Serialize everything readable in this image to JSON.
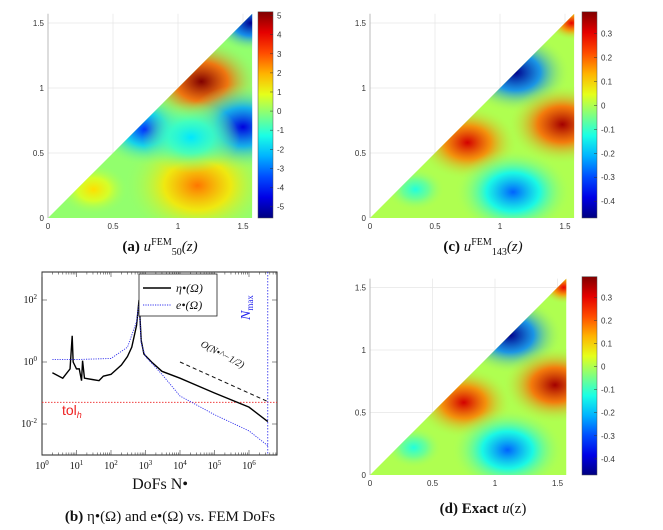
{
  "chart_data": [
    {
      "id": "a",
      "type": "heatmap",
      "caption": {
        "label": "(a)",
        "base": "u",
        "sub": "50",
        "sup": "FEM",
        "arg": "(z)"
      },
      "xlim": [
        0,
        1.5708
      ],
      "ylim": [
        0,
        1.5708
      ],
      "xticks": [
        "0",
        "0.5",
        "1",
        "1.5"
      ],
      "yticks": [
        "0",
        "0.5",
        "1",
        "1.5"
      ],
      "colorbar": {
        "range": [
          -5.6,
          5.2
        ],
        "ticks": [
          "5",
          "4",
          "3",
          "2",
          "1",
          "0",
          "-1",
          "-2",
          "-3",
          "-4",
          "-5"
        ]
      },
      "background_value": 0,
      "extrema": [
        {
          "x": 1.18,
          "y": 1.05,
          "v": 5.2,
          "r": 0.3
        },
        {
          "x": 1.15,
          "y": 0.25,
          "v": 2.6,
          "r": 0.38
        },
        {
          "x": 0.75,
          "y": 0.68,
          "v": -3.8,
          "r": 0.25
        },
        {
          "x": 1.5,
          "y": 0.7,
          "v": -4.6,
          "r": 0.3
        },
        {
          "x": 1.56,
          "y": 1.5,
          "v": -5.4,
          "r": 0.2
        },
        {
          "x": 0.35,
          "y": 0.22,
          "v": 1.5,
          "r": 0.18
        },
        {
          "x": 1.1,
          "y": 0.62,
          "v": -1.8,
          "r": 0.25
        }
      ]
    },
    {
      "id": "c",
      "type": "heatmap",
      "caption": {
        "label": "(c)",
        "base": "u",
        "sub": "143",
        "sup": "FEM",
        "arg": "(z)"
      },
      "xlim": [
        0,
        1.5708
      ],
      "ylim": [
        0,
        1.5708
      ],
      "xticks": [
        "0",
        "0.5",
        "1",
        "1.5"
      ],
      "yticks": [
        "0",
        "0.5",
        "1",
        "1.5"
      ],
      "colorbar": {
        "range": [
          -0.47,
          0.39
        ],
        "ticks": [
          "0.3",
          "0.2",
          "0.1",
          "0",
          "-0.1",
          "-0.2",
          "-0.3",
          "-0.4"
        ]
      },
      "background_value": 0,
      "extrema": [
        {
          "x": 1.12,
          "y": 1.12,
          "v": -0.46,
          "r": 0.28
        },
        {
          "x": 0.75,
          "y": 0.58,
          "v": 0.32,
          "r": 0.26
        },
        {
          "x": 1.48,
          "y": 0.72,
          "v": 0.36,
          "r": 0.28
        },
        {
          "x": 1.1,
          "y": 0.2,
          "v": -0.28,
          "r": 0.3
        },
        {
          "x": 1.55,
          "y": 1.5,
          "v": 0.3,
          "r": 0.12
        },
        {
          "x": 0.35,
          "y": 0.22,
          "v": -0.12,
          "r": 0.15
        }
      ]
    },
    {
      "id": "d",
      "type": "heatmap",
      "caption": {
        "label": "(d)",
        "text": "Exact",
        "base": "u",
        "arg": "(z)"
      },
      "xlim": [
        0,
        1.5708
      ],
      "ylim": [
        0,
        1.5708
      ],
      "xticks": [
        "0",
        "0.5",
        "1",
        "1.5"
      ],
      "yticks": [
        "0",
        "0.5",
        "1",
        "1.5"
      ],
      "colorbar": {
        "range": [
          -0.47,
          0.39
        ],
        "ticks": [
          "0.3",
          "0.2",
          "0.1",
          "0",
          "-0.1",
          "-0.2",
          "-0.3",
          "-0.4"
        ]
      },
      "background_value": 0,
      "extrema": [
        {
          "x": 1.12,
          "y": 1.12,
          "v": -0.46,
          "r": 0.28
        },
        {
          "x": 0.75,
          "y": 0.58,
          "v": 0.32,
          "r": 0.26
        },
        {
          "x": 1.48,
          "y": 0.72,
          "v": 0.36,
          "r": 0.28
        },
        {
          "x": 1.1,
          "y": 0.2,
          "v": -0.28,
          "r": 0.3
        },
        {
          "x": 1.55,
          "y": 1.5,
          "v": 0.3,
          "r": 0.12
        },
        {
          "x": 0.35,
          "y": 0.22,
          "v": -0.12,
          "r": 0.15
        }
      ]
    },
    {
      "id": "b",
      "type": "line",
      "caption": "η•(Ω) and e•(Ω) vs. FEM DoFs",
      "caption_label": "(b)",
      "xlabel": "DoFs N•",
      "xscale": "log",
      "yscale": "log",
      "xlim": [
        1,
        6000000.0
      ],
      "ylim": [
        0.001,
        870
      ],
      "xticks": [
        {
          "e": 0
        },
        {
          "e": 1
        },
        {
          "e": 2
        },
        {
          "e": 3
        },
        {
          "e": 4
        },
        {
          "e": 5
        },
        {
          "e": 6
        }
      ],
      "yticks": [
        {
          "e": 2
        },
        {
          "e": 0
        },
        {
          "e": -2
        }
      ],
      "legend": {
        "position": "top-right",
        "entries": [
          "η•(Ω)",
          "e•(Ω)"
        ]
      },
      "series": [
        {
          "name": "η•(Ω)",
          "color": "#000000",
          "style": "solid",
          "x": [
            2,
            4,
            6.5,
            7.5,
            8,
            10,
            12,
            14,
            15,
            17,
            30,
            45,
            60,
            100,
            200,
            300,
            400,
            550,
            650,
            750,
            900,
            1500,
            3000,
            10000,
            100000,
            1000000,
            3500000
          ],
          "y": [
            0.45,
            0.3,
            0.6,
            7,
            1,
            0.6,
            0.6,
            0.25,
            1.1,
            0.3,
            0.27,
            0.25,
            0.35,
            0.4,
            0.8,
            1.5,
            3,
            15,
            100,
            5,
            1.8,
            1,
            0.5,
            0.3,
            0.1,
            0.035,
            0.012
          ]
        },
        {
          "name": "e•(Ω)",
          "color": "#3333ee",
          "style": "dotted",
          "x": [
            2,
            10,
            100,
            300,
            550,
            650,
            750,
            1000,
            3000,
            10000,
            100000,
            1000000,
            3500000
          ],
          "y": [
            1.2,
            1.2,
            1.3,
            3,
            20,
            80,
            4,
            1.5,
            0.4,
            0.08,
            0.02,
            0.006,
            0.002
          ]
        }
      ],
      "annotations": {
        "rate": "O(N•^−1/2)",
        "rate_base": "O(N",
        "rate_sub": "•",
        "rate_sup": "−1/2",
        "rate_close": ")",
        "rate_line": {
          "x": [
            10000,
            3500000
          ],
          "y": [
            1,
            0.053
          ]
        },
        "tol_label": "tol",
        "tol_sub": "h",
        "tol_value": 0.05,
        "tol_color": "#ee2222",
        "nmax_label": "N",
        "nmax_sub": "max",
        "nmax_value": 3500000,
        "nmax_color": "#2222ee"
      }
    }
  ]
}
